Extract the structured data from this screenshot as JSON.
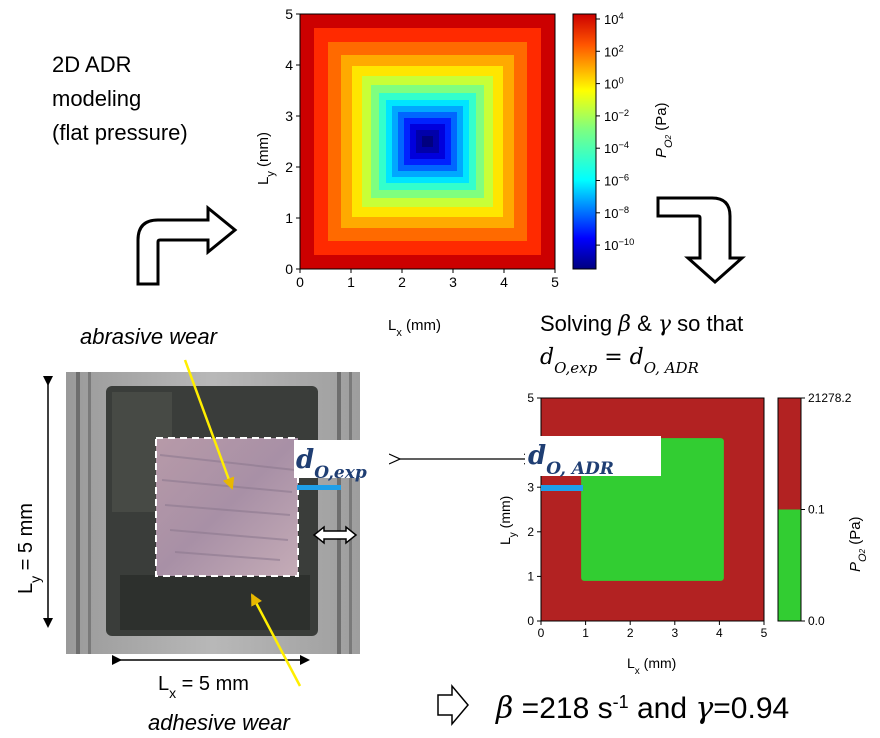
{
  "intro": {
    "lines": [
      "2D ADR",
      "modeling",
      "(flat pressure)"
    ]
  },
  "top_plot": {
    "xlabel": "Lx (mm)",
    "ylabel": "Ly (mm)",
    "x_ticks": [
      "0",
      "1",
      "2",
      "3",
      "4",
      "5"
    ],
    "y_ticks": [
      "0",
      "1",
      "2",
      "3",
      "4",
      "5"
    ],
    "xlim": [
      0,
      5
    ],
    "ylim": [
      0,
      5
    ],
    "colormap": "jet",
    "colorbar_label": "PO2 (Pa)",
    "colorbar_ticks": [
      "10^4",
      "10^2",
      "10^0",
      "10^-2",
      "10^-4",
      "10^-6",
      "10^-8",
      "10^-10"
    ]
  },
  "labels": {
    "abrasive": "abrasive wear",
    "adhesive": "adhesive wear",
    "ly_dim": "Ly = 5 mm",
    "lx_dim": "Lx = 5 mm",
    "d_exp": "d_O,exp",
    "d_adr": "d_O, ADR",
    "solving_line1": "Solving β & γ so that",
    "solving_line2": "d_O,exp = d_O, ADR",
    "result": "β =218 s-1 and γ=0.94"
  },
  "bottom_plot": {
    "xlabel": "Lx (mm)",
    "ylabel": "Ly (mm)",
    "x_ticks": [
      "0",
      "1",
      "2",
      "3",
      "4",
      "5"
    ],
    "y_ticks": [
      "0",
      "1",
      "2",
      "3",
      "4",
      "5"
    ],
    "xlim": [
      0,
      5
    ],
    "ylim": [
      0,
      5
    ],
    "outer_region_color": "#b22222",
    "inner_region_color": "#32cd32",
    "inner_region_mm": {
      "x0": 0.9,
      "x1": 4.1,
      "y0": 0.9,
      "y1": 4.1
    },
    "colorbar_label": "PO2 (Pa)",
    "colorbar_ticks": [
      "21278.2",
      "0.1",
      "0.0"
    ]
  },
  "colors": {
    "arrow_yellow": "#ffee00",
    "marker_blue": "#1f9fe8",
    "title_blue": "#1f3e73"
  }
}
